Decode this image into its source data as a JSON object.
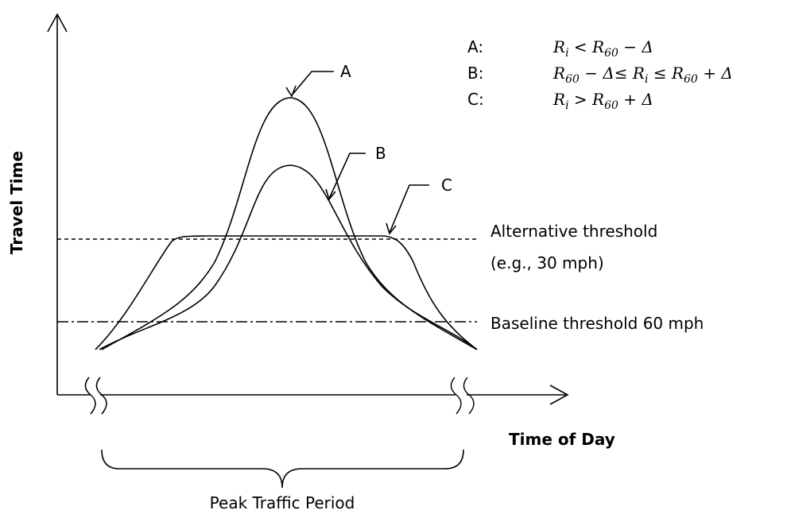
{
  "y_axis_label": "Travel Time",
  "x_axis_label": "Time of Day",
  "curve_labels": [
    "A",
    "B",
    "C"
  ],
  "thresholds": {
    "alternative": [
      "Alternative threshold",
      "(e.g., 30 mph)"
    ],
    "baseline": "Baseline threshold 60 mph"
  },
  "period_label": "Peak Traffic Period",
  "legend": [
    {
      "label": "A:",
      "formula": [
        {
          "t": "R"
        },
        {
          "sub": "i"
        },
        {
          "t": " < "
        },
        {
          "t": "R"
        },
        {
          "sub": "60"
        },
        {
          "t": " − Δ"
        }
      ]
    },
    {
      "label": "B:",
      "formula": [
        {
          "t": "R"
        },
        {
          "sub": "60"
        },
        {
          "t": " − Δ≤ "
        },
        {
          "t": "R"
        },
        {
          "sub": "i"
        },
        {
          "t": " ≤ "
        },
        {
          "t": "R"
        },
        {
          "sub": "60"
        },
        {
          "t": " + Δ"
        }
      ]
    },
    {
      "label": "C:",
      "formula": [
        {
          "t": "R"
        },
        {
          "sub": "i"
        },
        {
          "t": " > "
        },
        {
          "t": "R"
        },
        {
          "sub": "60"
        },
        {
          "t": " + Δ"
        }
      ]
    }
  ]
}
